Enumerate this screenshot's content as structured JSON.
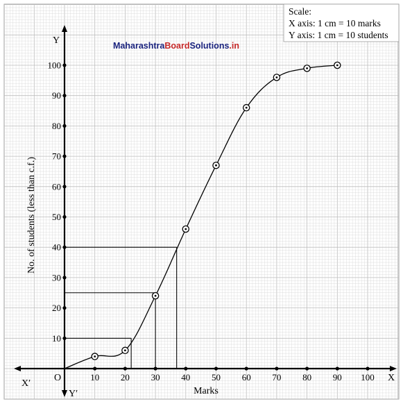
{
  "watermark": {
    "part1": "Maharashtra",
    "part2": "Board",
    "part3": "Solutions",
    "part4": ".in",
    "colors": {
      "part1": "#1a237e",
      "part2": "#c62828",
      "part3": "#1a237e",
      "part4": "#c62828"
    }
  },
  "scale_box": {
    "title": "Scale:",
    "x_line": "X axis: 1 cm = 10 marks",
    "y_line": "Y axis: 1 cm = 10 students"
  },
  "axes": {
    "x_end": "X",
    "x_neg": "X′",
    "y_end": "Y",
    "y_neg": "Y′",
    "origin": "O"
  },
  "chart_data": {
    "type": "line",
    "xlabel": "Marks",
    "ylabel": "No. of students (less than c.f.)",
    "xlim": [
      0,
      100
    ],
    "ylim": [
      0,
      100
    ],
    "x_ticks": [
      10,
      20,
      30,
      40,
      50,
      60,
      70,
      80,
      90,
      100
    ],
    "y_ticks": [
      10,
      20,
      30,
      40,
      50,
      60,
      70,
      80,
      90,
      100
    ],
    "grid": true,
    "series": [
      {
        "x": [
          10,
          20,
          30,
          40,
          50,
          60,
          70,
          80,
          90
        ],
        "y": [
          4,
          6,
          24,
          46,
          67,
          86,
          96,
          99,
          100
        ]
      }
    ],
    "guides": [
      {
        "y": 10,
        "x": 22
      },
      {
        "y": 25,
        "x": 30
      },
      {
        "y": 40,
        "x": 37
      }
    ]
  },
  "colors": {
    "grid": "#d6d6d6",
    "major_grid": "#bdbdbd",
    "axis": "#000000",
    "curve": "#000000"
  }
}
